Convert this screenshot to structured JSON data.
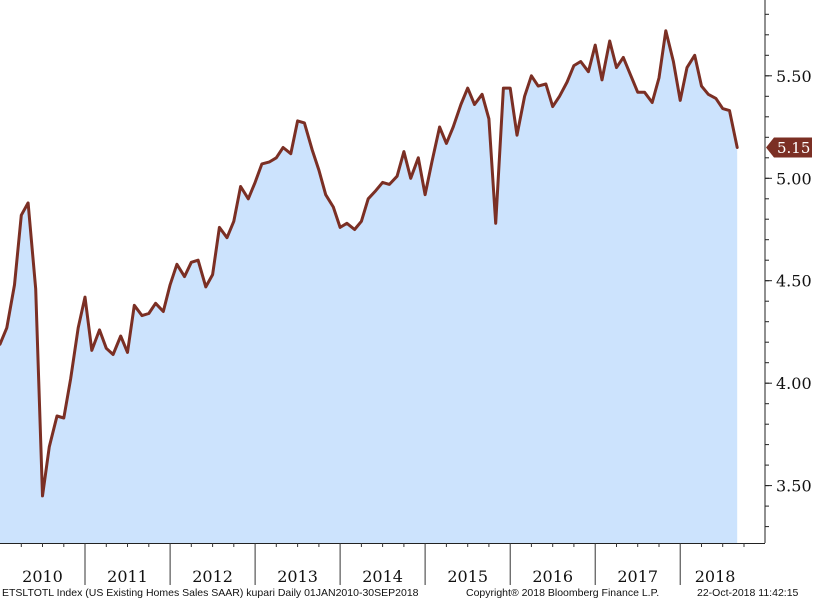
{
  "chart_data": {
    "type": "area",
    "series": [
      {
        "values": [
          [
            2010.0,
            4.19
          ],
          [
            2010.08,
            4.27
          ],
          [
            2010.17,
            4.48
          ],
          [
            2010.25,
            4.82
          ],
          [
            2010.33,
            4.88
          ],
          [
            2010.42,
            4.46
          ],
          [
            2010.5,
            3.45
          ],
          [
            2010.58,
            3.69
          ],
          [
            2010.67,
            3.84
          ],
          [
            2010.75,
            3.83
          ],
          [
            2010.83,
            4.02
          ],
          [
            2010.92,
            4.27
          ],
          [
            2011.0,
            4.42
          ],
          [
            2011.08,
            4.16
          ],
          [
            2011.17,
            4.26
          ],
          [
            2011.25,
            4.17
          ],
          [
            2011.33,
            4.14
          ],
          [
            2011.42,
            4.23
          ],
          [
            2011.5,
            4.15
          ],
          [
            2011.58,
            4.38
          ],
          [
            2011.67,
            4.33
          ],
          [
            2011.75,
            4.34
          ],
          [
            2011.83,
            4.39
          ],
          [
            2011.92,
            4.35
          ],
          [
            2012.0,
            4.48
          ],
          [
            2012.08,
            4.58
          ],
          [
            2012.17,
            4.52
          ],
          [
            2012.25,
            4.59
          ],
          [
            2012.33,
            4.6
          ],
          [
            2012.42,
            4.47
          ],
          [
            2012.5,
            4.53
          ],
          [
            2012.58,
            4.76
          ],
          [
            2012.67,
            4.71
          ],
          [
            2012.75,
            4.79
          ],
          [
            2012.83,
            4.96
          ],
          [
            2012.92,
            4.9
          ],
          [
            2013.0,
            4.98
          ],
          [
            2013.08,
            5.07
          ],
          [
            2013.17,
            5.08
          ],
          [
            2013.25,
            5.1
          ],
          [
            2013.33,
            5.15
          ],
          [
            2013.42,
            5.12
          ],
          [
            2013.5,
            5.28
          ],
          [
            2013.58,
            5.27
          ],
          [
            2013.67,
            5.14
          ],
          [
            2013.75,
            5.04
          ],
          [
            2013.83,
            4.92
          ],
          [
            2013.92,
            4.86
          ],
          [
            2014.0,
            4.76
          ],
          [
            2014.08,
            4.78
          ],
          [
            2014.17,
            4.75
          ],
          [
            2014.25,
            4.79
          ],
          [
            2014.33,
            4.9
          ],
          [
            2014.42,
            4.94
          ],
          [
            2014.5,
            4.98
          ],
          [
            2014.58,
            4.97
          ],
          [
            2014.67,
            5.01
          ],
          [
            2014.75,
            5.13
          ],
          [
            2014.83,
            5.0
          ],
          [
            2014.92,
            5.1
          ],
          [
            2015.0,
            4.92
          ],
          [
            2015.08,
            5.08
          ],
          [
            2015.17,
            5.25
          ],
          [
            2015.25,
            5.17
          ],
          [
            2015.33,
            5.25
          ],
          [
            2015.42,
            5.36
          ],
          [
            2015.5,
            5.44
          ],
          [
            2015.58,
            5.36
          ],
          [
            2015.67,
            5.41
          ],
          [
            2015.75,
            5.29
          ],
          [
            2015.83,
            4.78
          ],
          [
            2015.92,
            5.44
          ],
          [
            2016.0,
            5.44
          ],
          [
            2016.08,
            5.21
          ],
          [
            2016.17,
            5.4
          ],
          [
            2016.25,
            5.5
          ],
          [
            2016.33,
            5.45
          ],
          [
            2016.42,
            5.46
          ],
          [
            2016.5,
            5.35
          ],
          [
            2016.58,
            5.4
          ],
          [
            2016.67,
            5.47
          ],
          [
            2016.75,
            5.55
          ],
          [
            2016.83,
            5.57
          ],
          [
            2016.92,
            5.52
          ],
          [
            2017.0,
            5.65
          ],
          [
            2017.08,
            5.48
          ],
          [
            2017.17,
            5.67
          ],
          [
            2017.25,
            5.54
          ],
          [
            2017.33,
            5.59
          ],
          [
            2017.42,
            5.5
          ],
          [
            2017.5,
            5.42
          ],
          [
            2017.58,
            5.42
          ],
          [
            2017.67,
            5.37
          ],
          [
            2017.75,
            5.49
          ],
          [
            2017.83,
            5.72
          ],
          [
            2017.92,
            5.57
          ],
          [
            2018.0,
            5.38
          ],
          [
            2018.08,
            5.54
          ],
          [
            2018.17,
            5.6
          ],
          [
            2018.25,
            5.45
          ],
          [
            2018.33,
            5.41
          ],
          [
            2018.42,
            5.39
          ],
          [
            2018.5,
            5.34
          ],
          [
            2018.58,
            5.33
          ],
          [
            2018.67,
            5.15
          ]
        ],
        "color": "#7b2f24",
        "fill": "#cce3fd"
      }
    ],
    "ylim": [
      3.22,
      5.87
    ],
    "xlim": [
      2010.0,
      2018.75
    ],
    "yticks": [
      3.5,
      4.0,
      4.5,
      5.0,
      5.5
    ],
    "ytick_labels": [
      "3.50",
      "4.00",
      "4.50",
      "5.00",
      "5.50"
    ],
    "xlabels": [
      "2010",
      "2011",
      "2012",
      "2013",
      "2014",
      "2015",
      "2016",
      "2017",
      "2018"
    ],
    "last_value": "5.15",
    "grid": false,
    "axis_position": "right"
  },
  "footer": {
    "left": "ETSLTOTL Index (US Existing Homes Sales SAAR) kupari  Daily 01JAN2010-30SEP2018",
    "center": "Copyright® 2018 Bloomberg Finance L.P.",
    "right": "22-Oct-2018 11:42:15"
  }
}
